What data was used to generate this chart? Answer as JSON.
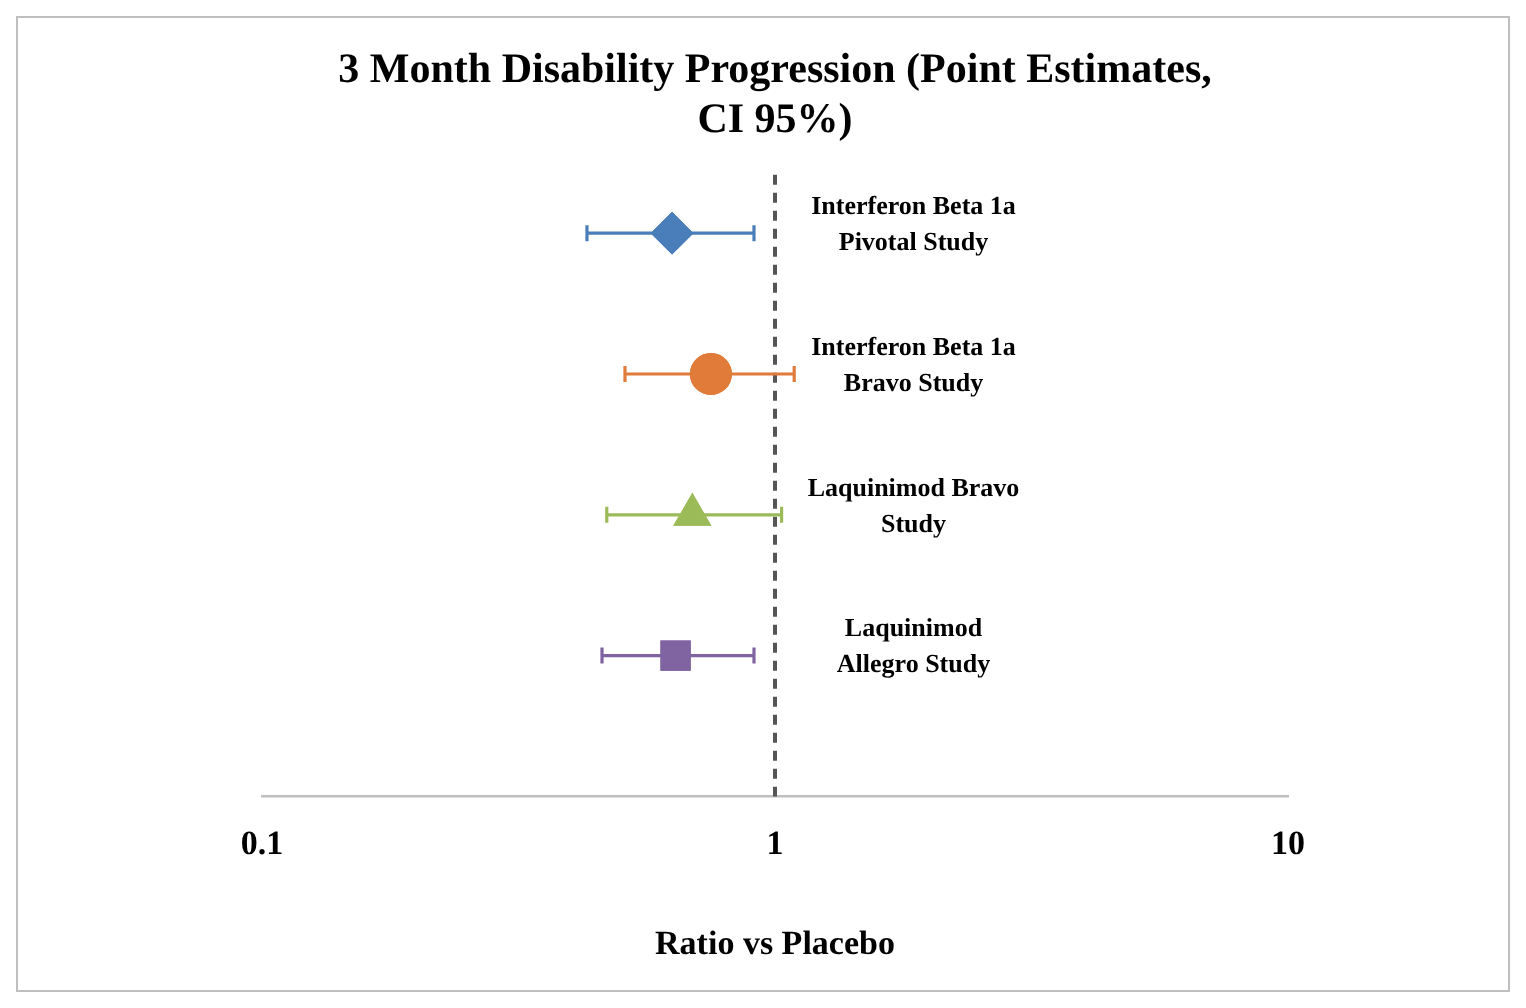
{
  "chart_data": {
    "type": "scatter",
    "title": "3 Month Disability Progression (Point Estimates, CI 95%)",
    "xlabel": "Ratio vs Placebo",
    "orientation": "horizontal",
    "categories": [
      null,
      null,
      null,
      null
    ],
    "series": [
      {
        "name": "Interferon Beta 1a Pivotal Study",
        "color": "#4a7ebb",
        "marker": "diamond",
        "values": [
          0.63,
          null,
          null,
          null
        ],
        "errors": [
          [
            0.43,
            0.91
          ],
          null,
          null,
          null
        ]
      },
      {
        "name": "Interferon Beta 1a Bravo Study",
        "color": "#e07b39",
        "marker": "circle",
        "values": [
          null,
          0.75,
          null,
          null
        ],
        "errors": [
          null,
          [
            0.51,
            1.09
          ],
          null,
          null
        ]
      },
      {
        "name": "Laquinimod Bravo Study",
        "color": "#9bbb59",
        "marker": "triangle",
        "values": [
          null,
          null,
          0.69,
          null
        ],
        "errors": [
          null,
          null,
          [
            0.47,
            1.03
          ],
          null
        ]
      },
      {
        "name": "Laquinimod Allegro Study",
        "color": "#8064a2",
        "marker": "square",
        "values": [
          null,
          null,
          null,
          0.64
        ],
        "errors": [
          null,
          null,
          null,
          [
            0.46,
            0.91
          ]
        ]
      }
    ],
    "xlim": [
      0.1,
      10
    ],
    "xticks": [
      0.1,
      1,
      10
    ],
    "log": "x",
    "ref_lines": [
      {
        "axis": "x",
        "value": 1,
        "line_style": "dashed",
        "color": "#555555"
      }
    ]
  }
}
